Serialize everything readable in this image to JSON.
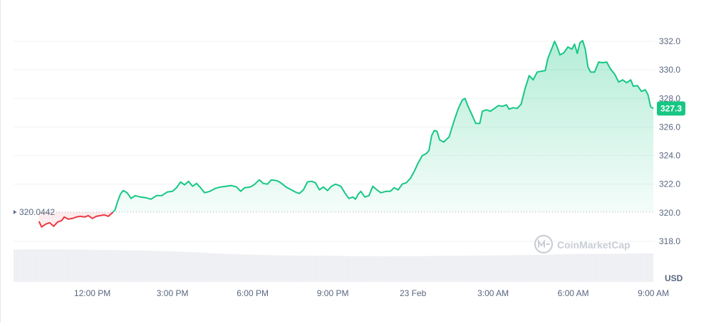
{
  "chart_data": {
    "type": "line",
    "unit": "USD",
    "reference_value": 320.0442,
    "reference_label": "320.0442",
    "current_price": 327.3,
    "current_label": "327.3",
    "ylim": [
      317.5,
      334.0
    ],
    "y_ticks": [
      318.0,
      320.0,
      322.0,
      324.0,
      326.0,
      328.0,
      330.0,
      332.0
    ],
    "y_tick_labels": [
      "318.0",
      "320.0",
      "322.0",
      "324.0",
      "326.0",
      "328.0",
      "330.0",
      "332.0"
    ],
    "x_ticks": [
      12,
      15,
      18,
      21,
      24,
      27,
      30,
      33
    ],
    "x_tick_labels": [
      "12:00 PM",
      "3:00 PM",
      "6:00 PM",
      "9:00 PM",
      "23 Feb",
      "3:00 AM",
      "6:00 AM",
      "9:00 AM"
    ],
    "x_range": [
      9.05,
      33.05
    ],
    "grid": true,
    "watermark": "CoinMarketCap",
    "up_color": "#16c784",
    "down_color": "#ea3943",
    "series": [
      {
        "points": [
          [
            10.0,
            319.4
          ],
          [
            10.1,
            319.0
          ],
          [
            10.25,
            319.2
          ],
          [
            10.4,
            319.3
          ],
          [
            10.55,
            319.05
          ],
          [
            10.7,
            319.35
          ],
          [
            10.85,
            319.45
          ],
          [
            10.95,
            319.7
          ],
          [
            11.1,
            319.55
          ],
          [
            11.25,
            319.6
          ],
          [
            11.4,
            319.7
          ],
          [
            11.55,
            319.75
          ],
          [
            11.7,
            319.7
          ],
          [
            11.85,
            319.8
          ],
          [
            12.0,
            319.6
          ],
          [
            12.15,
            319.75
          ],
          [
            12.3,
            319.8
          ],
          [
            12.45,
            319.85
          ],
          [
            12.6,
            319.75
          ],
          [
            12.75,
            320.0
          ],
          [
            12.85,
            320.2
          ],
          [
            12.95,
            320.8
          ],
          [
            13.05,
            321.3
          ],
          [
            13.15,
            321.55
          ],
          [
            13.3,
            321.4
          ],
          [
            13.45,
            321.0
          ],
          [
            13.6,
            321.2
          ],
          [
            13.8,
            321.1
          ],
          [
            14.0,
            321.05
          ],
          [
            14.2,
            320.95
          ],
          [
            14.4,
            321.2
          ],
          [
            14.6,
            321.2
          ],
          [
            14.8,
            321.45
          ],
          [
            15.0,
            321.5
          ],
          [
            15.15,
            321.75
          ],
          [
            15.3,
            322.15
          ],
          [
            15.45,
            321.95
          ],
          [
            15.6,
            322.2
          ],
          [
            15.75,
            321.85
          ],
          [
            15.9,
            322.05
          ],
          [
            16.05,
            321.75
          ],
          [
            16.2,
            321.4
          ],
          [
            16.4,
            321.5
          ],
          [
            16.6,
            321.7
          ],
          [
            16.8,
            321.8
          ],
          [
            17.0,
            321.85
          ],
          [
            17.2,
            321.9
          ],
          [
            17.4,
            321.8
          ],
          [
            17.55,
            321.5
          ],
          [
            17.7,
            321.75
          ],
          [
            17.9,
            321.8
          ],
          [
            18.05,
            321.95
          ],
          [
            18.25,
            322.3
          ],
          [
            18.4,
            322.05
          ],
          [
            18.55,
            322.0
          ],
          [
            18.7,
            322.3
          ],
          [
            18.9,
            322.25
          ],
          [
            19.05,
            322.1
          ],
          [
            19.25,
            321.8
          ],
          [
            19.45,
            321.6
          ],
          [
            19.6,
            321.45
          ],
          [
            19.75,
            321.35
          ],
          [
            19.9,
            321.6
          ],
          [
            20.05,
            322.15
          ],
          [
            20.2,
            322.2
          ],
          [
            20.35,
            322.1
          ],
          [
            20.5,
            321.6
          ],
          [
            20.65,
            321.8
          ],
          [
            20.8,
            321.55
          ],
          [
            20.95,
            321.85
          ],
          [
            21.1,
            322.0
          ],
          [
            21.3,
            321.85
          ],
          [
            21.45,
            321.4
          ],
          [
            21.6,
            321.0
          ],
          [
            21.75,
            321.1
          ],
          [
            21.85,
            320.95
          ],
          [
            21.95,
            321.3
          ],
          [
            22.05,
            321.5
          ],
          [
            22.2,
            321.1
          ],
          [
            22.35,
            321.2
          ],
          [
            22.5,
            321.85
          ],
          [
            22.65,
            321.6
          ],
          [
            22.8,
            321.4
          ],
          [
            23.0,
            321.5
          ],
          [
            23.15,
            321.5
          ],
          [
            23.3,
            321.75
          ],
          [
            23.45,
            321.6
          ],
          [
            23.6,
            322.0
          ],
          [
            23.75,
            322.1
          ],
          [
            23.9,
            322.4
          ],
          [
            24.05,
            322.9
          ],
          [
            24.2,
            323.5
          ],
          [
            24.35,
            324.0
          ],
          [
            24.5,
            324.15
          ],
          [
            24.6,
            324.35
          ],
          [
            24.7,
            325.4
          ],
          [
            24.8,
            325.75
          ],
          [
            24.9,
            325.7
          ],
          [
            25.0,
            325.1
          ],
          [
            25.15,
            324.95
          ],
          [
            25.35,
            325.3
          ],
          [
            25.55,
            326.5
          ],
          [
            25.7,
            327.3
          ],
          [
            25.85,
            327.9
          ],
          [
            25.95,
            328.0
          ],
          [
            26.05,
            327.5
          ],
          [
            26.2,
            326.9
          ],
          [
            26.35,
            326.25
          ],
          [
            26.5,
            326.25
          ],
          [
            26.6,
            327.1
          ],
          [
            26.75,
            327.2
          ],
          [
            26.9,
            327.1
          ],
          [
            27.05,
            327.3
          ],
          [
            27.2,
            327.5
          ],
          [
            27.35,
            327.45
          ],
          [
            27.5,
            327.55
          ],
          [
            27.6,
            327.25
          ],
          [
            27.75,
            327.35
          ],
          [
            27.9,
            327.3
          ],
          [
            28.05,
            327.6
          ],
          [
            28.2,
            328.7
          ],
          [
            28.35,
            329.6
          ],
          [
            28.5,
            329.3
          ],
          [
            28.65,
            329.85
          ],
          [
            28.8,
            329.9
          ],
          [
            28.95,
            329.95
          ],
          [
            29.05,
            330.8
          ],
          [
            29.2,
            331.5
          ],
          [
            29.3,
            332.0
          ],
          [
            29.4,
            331.6
          ],
          [
            29.5,
            331.05
          ],
          [
            29.65,
            331.2
          ],
          [
            29.8,
            331.6
          ],
          [
            29.95,
            331.45
          ],
          [
            30.05,
            331.8
          ],
          [
            30.15,
            331.15
          ],
          [
            30.25,
            331.9
          ],
          [
            30.35,
            332.05
          ],
          [
            30.45,
            331.45
          ],
          [
            30.55,
            330.2
          ],
          [
            30.65,
            329.85
          ],
          [
            30.8,
            329.85
          ],
          [
            30.95,
            330.55
          ],
          [
            31.1,
            330.5
          ],
          [
            31.25,
            330.55
          ],
          [
            31.4,
            330.05
          ],
          [
            31.55,
            329.7
          ],
          [
            31.7,
            329.15
          ],
          [
            31.85,
            329.3
          ],
          [
            32.0,
            329.1
          ],
          [
            32.15,
            329.3
          ],
          [
            32.25,
            328.85
          ],
          [
            32.4,
            328.9
          ],
          [
            32.55,
            328.5
          ],
          [
            32.7,
            328.6
          ],
          [
            32.8,
            328.25
          ],
          [
            32.9,
            327.4
          ],
          [
            33.0,
            327.3
          ]
        ]
      }
    ],
    "volume": [
      [
        10.0,
        0.86
      ],
      [
        11.0,
        0.86
      ],
      [
        12.0,
        0.85
      ],
      [
        13.0,
        0.84
      ],
      [
        14.0,
        0.83
      ],
      [
        15.0,
        0.81
      ],
      [
        16.0,
        0.78
      ],
      [
        17.0,
        0.74
      ],
      [
        18.0,
        0.72
      ],
      [
        19.0,
        0.7
      ],
      [
        20.0,
        0.69
      ],
      [
        21.0,
        0.69
      ],
      [
        22.0,
        0.68
      ],
      [
        23.0,
        0.68
      ],
      [
        24.0,
        0.68
      ],
      [
        25.0,
        0.69
      ],
      [
        26.0,
        0.69
      ],
      [
        27.0,
        0.7
      ],
      [
        28.0,
        0.71
      ],
      [
        29.0,
        0.72
      ],
      [
        30.0,
        0.74
      ],
      [
        31.0,
        0.74
      ],
      [
        32.0,
        0.75
      ],
      [
        33.0,
        0.76
      ]
    ]
  }
}
